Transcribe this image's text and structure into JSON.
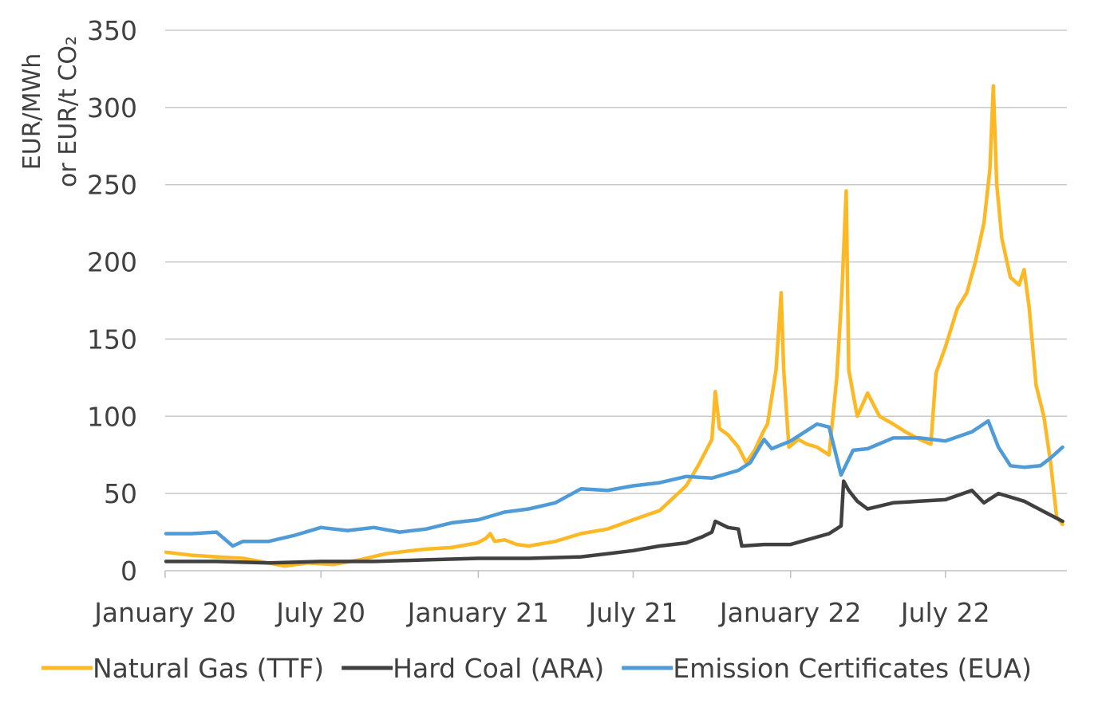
{
  "chart_data": {
    "type": "line",
    "title": "",
    "xlabel": "",
    "ylabel_line1": "EUR/MWh",
    "ylabel_line2": "or EUR/t CO₂",
    "ylim": [
      0,
      350
    ],
    "yticks": [
      0,
      50,
      100,
      150,
      200,
      250,
      300,
      350
    ],
    "xlim": [
      "2020-01-01",
      "2022-11-20"
    ],
    "xticks": [
      {
        "date": "2020-01-01",
        "label": "January 20"
      },
      {
        "date": "2020-07-01",
        "label": "July 20"
      },
      {
        "date": "2021-01-01",
        "label": "January 21"
      },
      {
        "date": "2021-07-01",
        "label": "July 21"
      },
      {
        "date": "2022-01-01",
        "label": "January 22"
      },
      {
        "date": "2022-07-01",
        "label": "July 22"
      }
    ],
    "grid": "horizontal",
    "legend_position": "bottom",
    "series": [
      {
        "name": "Natural Gas (TTF)",
        "color": "#FDB825",
        "points": [
          [
            "2020-01-02",
            12
          ],
          [
            "2020-02-01",
            10
          ],
          [
            "2020-03-01",
            9
          ],
          [
            "2020-04-01",
            8
          ],
          [
            "2020-05-01",
            5
          ],
          [
            "2020-05-20",
            3
          ],
          [
            "2020-06-15",
            5
          ],
          [
            "2020-07-15",
            4
          ],
          [
            "2020-08-15",
            7
          ],
          [
            "2020-09-15",
            11
          ],
          [
            "2020-10-15",
            13
          ],
          [
            "2020-11-01",
            14
          ],
          [
            "2020-12-01",
            15
          ],
          [
            "2020-12-31",
            18
          ],
          [
            "2021-01-10",
            21
          ],
          [
            "2021-01-15",
            24
          ],
          [
            "2021-01-20",
            19
          ],
          [
            "2021-02-01",
            20
          ],
          [
            "2021-02-15",
            17
          ],
          [
            "2021-03-01",
            16
          ],
          [
            "2021-04-01",
            19
          ],
          [
            "2021-05-01",
            24
          ],
          [
            "2021-06-01",
            27
          ],
          [
            "2021-07-01",
            33
          ],
          [
            "2021-08-01",
            39
          ],
          [
            "2021-09-01",
            55
          ],
          [
            "2021-09-15",
            68
          ],
          [
            "2021-10-01",
            85
          ],
          [
            "2021-10-05",
            116
          ],
          [
            "2021-10-10",
            92
          ],
          [
            "2021-10-20",
            88
          ],
          [
            "2021-11-01",
            80
          ],
          [
            "2021-11-10",
            70
          ],
          [
            "2021-11-20",
            78
          ],
          [
            "2021-11-30",
            90
          ],
          [
            "2021-12-05",
            95
          ],
          [
            "2021-12-15",
            130
          ],
          [
            "2021-12-21",
            180
          ],
          [
            "2021-12-24",
            130
          ],
          [
            "2021-12-30",
            80
          ],
          [
            "2022-01-10",
            85
          ],
          [
            "2022-01-20",
            82
          ],
          [
            "2022-02-01",
            80
          ],
          [
            "2022-02-15",
            75
          ],
          [
            "2022-02-24",
            125
          ],
          [
            "2022-03-02",
            180
          ],
          [
            "2022-03-07",
            246
          ],
          [
            "2022-03-10",
            130
          ],
          [
            "2022-03-20",
            100
          ],
          [
            "2022-04-01",
            115
          ],
          [
            "2022-04-15",
            100
          ],
          [
            "2022-05-01",
            95
          ],
          [
            "2022-05-15",
            90
          ],
          [
            "2022-06-01",
            85
          ],
          [
            "2022-06-14",
            82
          ],
          [
            "2022-06-20",
            128
          ],
          [
            "2022-07-01",
            145
          ],
          [
            "2022-07-15",
            170
          ],
          [
            "2022-07-26",
            180
          ],
          [
            "2022-08-05",
            200
          ],
          [
            "2022-08-15",
            225
          ],
          [
            "2022-08-22",
            260
          ],
          [
            "2022-08-26",
            314
          ],
          [
            "2022-08-30",
            250
          ],
          [
            "2022-09-05",
            215
          ],
          [
            "2022-09-15",
            190
          ],
          [
            "2022-09-25",
            185
          ],
          [
            "2022-10-01",
            195
          ],
          [
            "2022-10-07",
            170
          ],
          [
            "2022-10-15",
            120
          ],
          [
            "2022-10-24",
            100
          ],
          [
            "2022-11-01",
            70
          ],
          [
            "2022-11-08",
            35
          ],
          [
            "2022-11-15",
            30
          ]
        ]
      },
      {
        "name": "Hard Coal (ARA)",
        "color": "#404040",
        "points": [
          [
            "2020-01-02",
            6
          ],
          [
            "2020-03-01",
            6
          ],
          [
            "2020-05-01",
            5
          ],
          [
            "2020-07-01",
            6
          ],
          [
            "2020-09-01",
            6
          ],
          [
            "2020-11-01",
            7
          ],
          [
            "2021-01-01",
            8
          ],
          [
            "2021-03-01",
            8
          ],
          [
            "2021-05-01",
            9
          ],
          [
            "2021-06-01",
            11
          ],
          [
            "2021-07-01",
            13
          ],
          [
            "2021-08-01",
            16
          ],
          [
            "2021-09-01",
            18
          ],
          [
            "2021-09-20",
            22
          ],
          [
            "2021-10-01",
            25
          ],
          [
            "2021-10-05",
            32
          ],
          [
            "2021-10-20",
            28
          ],
          [
            "2021-11-01",
            27
          ],
          [
            "2021-11-05",
            16
          ],
          [
            "2021-12-01",
            17
          ],
          [
            "2022-01-01",
            17
          ],
          [
            "2022-01-20",
            20
          ],
          [
            "2022-02-15",
            24
          ],
          [
            "2022-03-01",
            29
          ],
          [
            "2022-03-04",
            58
          ],
          [
            "2022-03-10",
            52
          ],
          [
            "2022-03-20",
            45
          ],
          [
            "2022-04-01",
            40
          ],
          [
            "2022-05-01",
            44
          ],
          [
            "2022-06-01",
            45
          ],
          [
            "2022-07-01",
            46
          ],
          [
            "2022-08-01",
            52
          ],
          [
            "2022-08-15",
            44
          ],
          [
            "2022-09-01",
            50
          ],
          [
            "2022-10-01",
            45
          ],
          [
            "2022-11-01",
            36
          ],
          [
            "2022-11-15",
            32
          ]
        ]
      },
      {
        "name": "Emission Certificates (EUA)",
        "color": "#4E9BD8",
        "points": [
          [
            "2020-01-02",
            24
          ],
          [
            "2020-02-01",
            24
          ],
          [
            "2020-03-01",
            25
          ],
          [
            "2020-03-20",
            16
          ],
          [
            "2020-04-01",
            19
          ],
          [
            "2020-05-01",
            19
          ],
          [
            "2020-06-01",
            23
          ],
          [
            "2020-07-01",
            28
          ],
          [
            "2020-08-01",
            26
          ],
          [
            "2020-09-01",
            28
          ],
          [
            "2020-10-01",
            25
          ],
          [
            "2020-11-01",
            27
          ],
          [
            "2020-12-01",
            31
          ],
          [
            "2021-01-01",
            33
          ],
          [
            "2021-02-01",
            38
          ],
          [
            "2021-03-01",
            40
          ],
          [
            "2021-04-01",
            44
          ],
          [
            "2021-05-01",
            53
          ],
          [
            "2021-06-01",
            52
          ],
          [
            "2021-07-01",
            55
          ],
          [
            "2021-08-01",
            57
          ],
          [
            "2021-09-01",
            61
          ],
          [
            "2021-10-01",
            60
          ],
          [
            "2021-11-01",
            65
          ],
          [
            "2021-11-15",
            70
          ],
          [
            "2021-12-01",
            85
          ],
          [
            "2021-12-10",
            79
          ],
          [
            "2022-01-01",
            84
          ],
          [
            "2022-02-01",
            95
          ],
          [
            "2022-02-15",
            93
          ],
          [
            "2022-03-01",
            62
          ],
          [
            "2022-03-15",
            78
          ],
          [
            "2022-04-01",
            79
          ],
          [
            "2022-05-01",
            86
          ],
          [
            "2022-06-01",
            86
          ],
          [
            "2022-07-01",
            84
          ],
          [
            "2022-08-01",
            90
          ],
          [
            "2022-08-20",
            97
          ],
          [
            "2022-09-01",
            80
          ],
          [
            "2022-09-15",
            68
          ],
          [
            "2022-10-01",
            67
          ],
          [
            "2022-10-20",
            68
          ],
          [
            "2022-11-01",
            73
          ],
          [
            "2022-11-15",
            80
          ]
        ]
      }
    ]
  }
}
